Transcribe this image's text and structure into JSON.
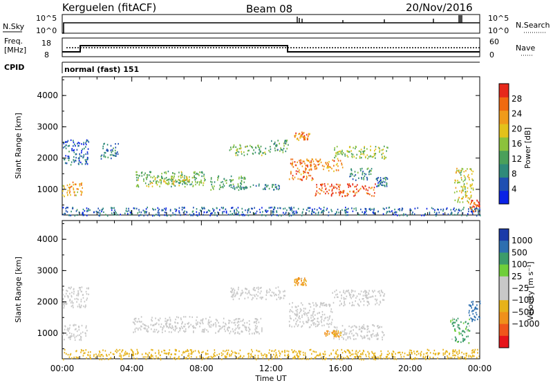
{
  "header": {
    "station": "Kerguelen (fitACF)",
    "beam": "Beam 08",
    "date": "20/Nov/2016"
  },
  "status_panels": {
    "nsky_label": "N.Sky",
    "nsky_ticks": [
      "10^5",
      "10^0"
    ],
    "nsearch_label": "N.Search",
    "freq_label_line1": "Freq.",
    "freq_label_line2": "[MHz]",
    "freq_ticks": [
      "18",
      "8"
    ],
    "nave_label": "Nave",
    "nave_ticks": [
      "60",
      "0"
    ],
    "cpid_label": "CPID",
    "cpid_text": "normal (fast) 151"
  },
  "chart_data": [
    {
      "type": "heatmap",
      "name": "Power",
      "ylabel": "Slant Range [km]",
      "yticks": [
        "1000",
        "2000",
        "3000",
        "4000"
      ],
      "ylim": [
        180,
        4600
      ],
      "xlim": [
        0,
        24
      ],
      "colorbar": {
        "label": "Power [dB]",
        "ticks": [
          "4",
          "8",
          "12",
          "16",
          "20",
          "24",
          "28"
        ],
        "range": [
          0,
          32
        ],
        "colors": [
          "#0a22e6",
          "#1f4fb2",
          "#2f8a7a",
          "#4aa05a",
          "#8cc23c",
          "#e3c21a",
          "#f09b1a",
          "#f06a10",
          "#e6281a"
        ]
      },
      "regions": [
        {
          "t0": 0.0,
          "t1": 1.2,
          "r0": 800,
          "r1": 1250,
          "level": 22
        },
        {
          "t0": 0.0,
          "t1": 1.5,
          "r0": 1800,
          "r1": 2600,
          "level": 6
        },
        {
          "t0": 2.2,
          "t1": 3.2,
          "r0": 2000,
          "r1": 2500,
          "level": 8
        },
        {
          "t0": 4.2,
          "t1": 8.2,
          "r0": 1100,
          "r1": 1600,
          "level": 14
        },
        {
          "t0": 5.0,
          "t1": 7.5,
          "r0": 1200,
          "r1": 1450,
          "level": 18
        },
        {
          "t0": 8.5,
          "t1": 10.5,
          "r0": 1000,
          "r1": 1450,
          "level": 12
        },
        {
          "t0": 9.6,
          "t1": 11.7,
          "r0": 2100,
          "r1": 2450,
          "level": 14
        },
        {
          "t0": 10.0,
          "t1": 12.5,
          "r0": 1000,
          "r1": 1200,
          "level": 8
        },
        {
          "t0": 11.8,
          "t1": 13.0,
          "r0": 2200,
          "r1": 2600,
          "level": 12
        },
        {
          "t0": 13.0,
          "t1": 14.4,
          "r0": 1300,
          "r1": 2000,
          "level": 26
        },
        {
          "t0": 14.2,
          "t1": 16.1,
          "r0": 1600,
          "r1": 2000,
          "level": 24
        },
        {
          "t0": 13.3,
          "t1": 14.2,
          "r0": 2600,
          "r1": 2850,
          "level": 24
        },
        {
          "t0": 15.5,
          "t1": 18.7,
          "r0": 2000,
          "r1": 2400,
          "level": 16
        },
        {
          "t0": 14.5,
          "t1": 18.0,
          "r0": 800,
          "r1": 1200,
          "level": 28
        },
        {
          "t0": 16.5,
          "t1": 17.8,
          "r0": 1300,
          "r1": 1700,
          "level": 10
        },
        {
          "t0": 18.0,
          "t1": 18.7,
          "r0": 1100,
          "r1": 1400,
          "level": 8
        },
        {
          "t0": 22.5,
          "t1": 23.6,
          "r0": 600,
          "r1": 1700,
          "level": 18
        },
        {
          "t0": 23.4,
          "t1": 24.0,
          "r0": 300,
          "r1": 700,
          "level": 28
        },
        {
          "t0": 0.0,
          "t1": 24.0,
          "r0": 180,
          "r1": 450,
          "level": 6
        }
      ]
    },
    {
      "type": "heatmap",
      "name": "Velocity",
      "ylabel": "Slant Range [km]",
      "yticks": [
        "1000",
        "2000",
        "3000",
        "4000"
      ],
      "ylim": [
        180,
        4600
      ],
      "xlim": [
        0,
        24
      ],
      "xticks": [
        "00:00",
        "04:00",
        "08:00",
        "12:00",
        "16:00",
        "20:00",
        "00:00"
      ],
      "xlabel": "Time UT",
      "colorbar": {
        "label": "Velocity [m s⁻¹]",
        "ticks": [
          "1000",
          "500",
          "100",
          "25",
          "−25",
          "−100",
          "−500",
          "−1000"
        ],
        "colors": [
          "#1a3aa8",
          "#2d6fb0",
          "#3c9c6a",
          "#6fcf3a",
          "#c8c8c8",
          "#c8c8c8",
          "#e6b21a",
          "#f0901a",
          "#f0561a",
          "#e6141a"
        ]
      },
      "regions": [
        {
          "t0": 0.0,
          "t1": 1.4,
          "r0": 800,
          "r1": 1300,
          "v": 0
        },
        {
          "t0": 0.0,
          "t1": 1.5,
          "r0": 1800,
          "r1": 2500,
          "v": 0
        },
        {
          "t0": 4.0,
          "t1": 8.5,
          "r0": 1050,
          "r1": 1550,
          "v": 0
        },
        {
          "t0": 8.5,
          "t1": 11.5,
          "r0": 1000,
          "r1": 1500,
          "v": 0
        },
        {
          "t0": 9.6,
          "t1": 12.8,
          "r0": 2100,
          "r1": 2500,
          "v": 0
        },
        {
          "t0": 13.0,
          "t1": 15.5,
          "r0": 1200,
          "r1": 2000,
          "v": 0
        },
        {
          "t0": 15.5,
          "t1": 18.5,
          "r0": 800,
          "r1": 1300,
          "v": 0
        },
        {
          "t0": 15.5,
          "t1": 18.5,
          "r0": 1900,
          "r1": 2400,
          "v": 0
        },
        {
          "t0": 15.0,
          "t1": 16.0,
          "r0": 900,
          "r1": 1100,
          "v": -200
        },
        {
          "t0": 13.3,
          "t1": 14.0,
          "r0": 2550,
          "r1": 2800,
          "v": -200
        },
        {
          "t0": 22.3,
          "t1": 23.4,
          "r0": 700,
          "r1": 1500,
          "v": 200
        },
        {
          "t0": 23.3,
          "t1": 24.0,
          "r0": 1400,
          "r1": 2100,
          "v": 800
        },
        {
          "t0": 0.0,
          "t1": 24.0,
          "r0": 180,
          "r1": 500,
          "v": -60
        }
      ]
    }
  ]
}
